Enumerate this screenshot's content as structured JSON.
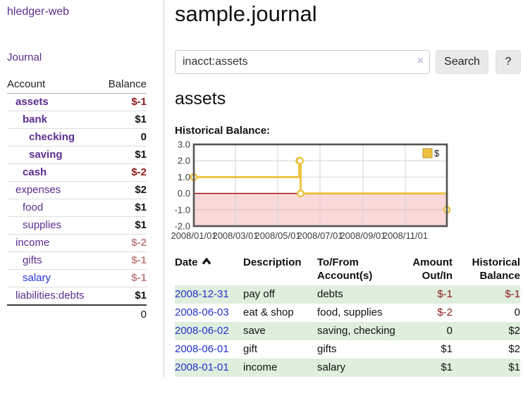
{
  "colors": {
    "accent_purple": "#5c2d91",
    "link_blue": "#2233cc",
    "negative_strong": "#8b1a1a",
    "negative_soft": "#c28080",
    "row_stripe_green": "#dfeedd",
    "chart_line_gold": "#edc240",
    "chart_negative_fill": "#f9d9d9",
    "chart_zero_line": "#a40000"
  },
  "sidebar": {
    "brand": "hledger-web",
    "nav": {
      "journal": "Journal"
    },
    "accounts_table": {
      "headers": {
        "account": "Account",
        "balance": "Balance"
      },
      "rows": [
        {
          "name": "assets",
          "balance": "$-1",
          "indent": 1,
          "bold": true,
          "balance_class": "neg-strong"
        },
        {
          "name": "bank",
          "balance": "$1",
          "indent": 2,
          "bold": true,
          "balance_class": null
        },
        {
          "name": "checking",
          "balance": "0",
          "indent": 3,
          "bold": true,
          "balance_class": null
        },
        {
          "name": "saving",
          "balance": "$1",
          "indent": 3,
          "bold": true,
          "balance_class": null
        },
        {
          "name": "cash",
          "balance": "$-2",
          "indent": 2,
          "bold": true,
          "balance_class": "neg-strong"
        },
        {
          "name": "expenses",
          "balance": "$2",
          "indent": 1,
          "bold": false,
          "balance_class": null
        },
        {
          "name": "food",
          "balance": "$1",
          "indent": 2,
          "bold": false,
          "balance_class": null
        },
        {
          "name": "supplies",
          "balance": "$1",
          "indent": 2,
          "bold": false,
          "balance_class": null
        },
        {
          "name": "income",
          "balance": "$-2",
          "indent": 1,
          "bold": false,
          "balance_class": "neg-soft"
        },
        {
          "name": "gifts",
          "balance": "$-1",
          "indent": 2,
          "bold": false,
          "balance_class": "neg-soft"
        },
        {
          "name": "salary",
          "balance": "$-1",
          "indent": 2,
          "bold": false,
          "balance_class": "neg-soft",
          "link": "unvisited"
        },
        {
          "name": "liabilities:debts",
          "balance": "$1",
          "indent": 1,
          "bold": false,
          "balance_class": null
        }
      ],
      "total": "0"
    }
  },
  "header": {
    "title": "sample.journal"
  },
  "search": {
    "value": "inacct:assets",
    "clear_icon": "×",
    "button_label": "Search",
    "help_label": "?"
  },
  "account_view": {
    "title": "assets",
    "chart_label": "Historical Balance:"
  },
  "chart_data": {
    "type": "line",
    "step": true,
    "title": "Historical Balance",
    "xlim": [
      "2008-01-01",
      "2008-12-31"
    ],
    "ylim": [
      -2,
      3
    ],
    "y_ticks": [
      "3.0",
      "2.0",
      "1.0",
      "0.0",
      "-1.0",
      "-2.0"
    ],
    "y_tick_values": [
      3,
      2,
      1,
      0,
      -1,
      -2
    ],
    "x_ticks": [
      {
        "date": "2008-01-01",
        "label": "2008/01/01"
      },
      {
        "date": "2008-03-01",
        "label": "2008/03/01"
      },
      {
        "date": "2008-05-01",
        "label": "2008/05/01"
      },
      {
        "date": "2008-07-01",
        "label": "2008/07/01"
      },
      {
        "date": "2008-09-01",
        "label": "2008/09/01"
      },
      {
        "date": "2008-11-01",
        "label": "2008/11/01"
      }
    ],
    "series": [
      {
        "name": "$",
        "color": "#edc240",
        "points": [
          {
            "x": "2008-01-01",
            "y": 1
          },
          {
            "x": "2008-06-01",
            "y": 2
          },
          {
            "x": "2008-06-02",
            "y": 2
          },
          {
            "x": "2008-06-03",
            "y": 0
          },
          {
            "x": "2008-12-31",
            "y": -1
          }
        ]
      }
    ],
    "legend": {
      "label": "$",
      "position": "top-right"
    },
    "grid": true
  },
  "transactions": {
    "headers": {
      "date": "Date",
      "description": "Description",
      "accounts": "To/From Account(s)",
      "amount": "Amount Out/In",
      "balance": "Historical Balance"
    },
    "sort": {
      "column": "date",
      "direction": "ascending"
    },
    "rows": [
      {
        "date": "2008-12-31",
        "description": "pay off",
        "accounts": "debts",
        "amount": "$-1",
        "amount_negative": true,
        "balance": "$-1",
        "balance_negative": true
      },
      {
        "date": "2008-06-03",
        "description": "eat & shop",
        "accounts": "food, supplies",
        "amount": "$-2",
        "amount_negative": true,
        "balance": "0",
        "balance_negative": false
      },
      {
        "date": "2008-06-02",
        "description": "save",
        "accounts": "saving, checking",
        "amount": "0",
        "amount_negative": false,
        "balance": "$2",
        "balance_negative": false
      },
      {
        "date": "2008-06-01",
        "description": "gift",
        "accounts": "gifts",
        "amount": "$1",
        "amount_negative": false,
        "balance": "$2",
        "balance_negative": false
      },
      {
        "date": "2008-01-01",
        "description": "income",
        "accounts": "salary",
        "amount": "$1",
        "amount_negative": false,
        "balance": "$1",
        "balance_negative": false
      }
    ]
  }
}
